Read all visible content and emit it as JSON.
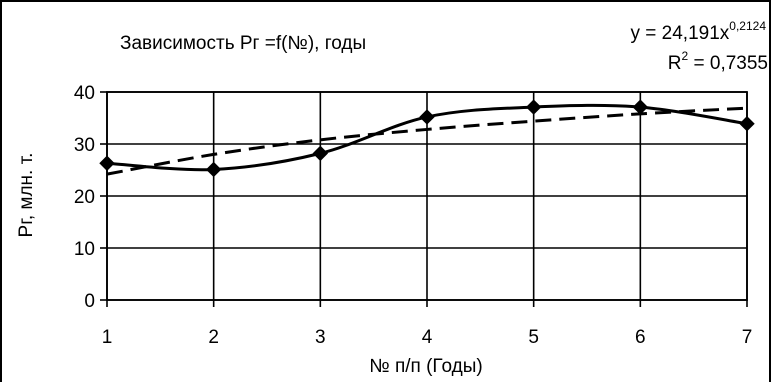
{
  "chart_data": {
    "type": "line",
    "title": "Зависимость Pг =f(№), годы",
    "xlabel": "№ п/п (Годы)",
    "ylabel": "Pг, млн. т.",
    "x": [
      1,
      2,
      3,
      4,
      5,
      6,
      7
    ],
    "x_tick_labels": [
      "1",
      "2",
      "3",
      "4",
      "5",
      "6",
      "7"
    ],
    "y_tick_labels": [
      "0",
      "10",
      "20",
      "30",
      "40"
    ],
    "xlim": [
      1,
      7
    ],
    "ylim": [
      0,
      40
    ],
    "y_tick_step": 10,
    "grid": true,
    "series": [
      {
        "values": [
          26.3,
          25.1,
          28.2,
          35.2,
          37.1,
          37.1,
          33.9
        ],
        "style": "solid",
        "marker": "diamond",
        "color": "#000000"
      },
      {
        "values": [
          24.2,
          28.0,
          30.8,
          32.8,
          34.4,
          35.8,
          36.9
        ],
        "style": "dashed",
        "marker": "none",
        "color": "#000000"
      }
    ],
    "trendline": {
      "type": "power",
      "equation_prefix": "y = 24,191x",
      "equation_exponent": "0,2124",
      "r2_prefix": "R",
      "r2_superscript": "2",
      "r2_value": " = 0,7355"
    }
  }
}
